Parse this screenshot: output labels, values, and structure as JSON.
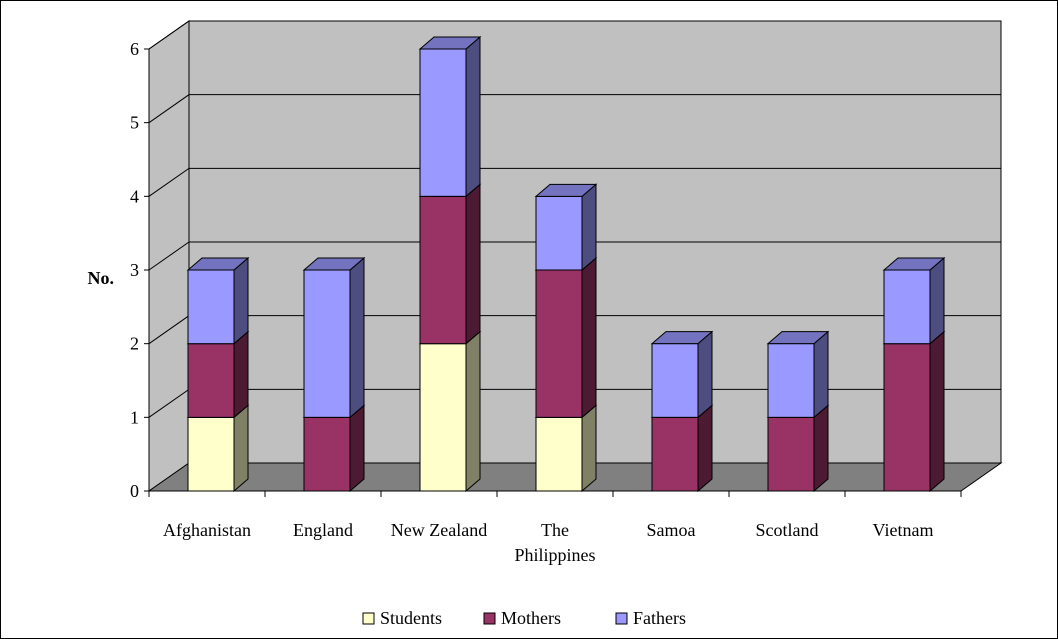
{
  "chart_data": {
    "type": "bar",
    "stacked": true,
    "three_d": true,
    "ylabel": "No.",
    "xlabel": "",
    "ylim": [
      0,
      6
    ],
    "yticks": [
      "0",
      "1",
      "2",
      "3",
      "4",
      "5",
      "6"
    ],
    "grid": true,
    "legend_position": "bottom",
    "categories": [
      [
        "Afghanistan"
      ],
      [
        "England"
      ],
      [
        "New Zealand"
      ],
      [
        "The",
        "Philippines"
      ],
      [
        "Samoa"
      ],
      [
        "Scotland"
      ],
      [
        "Vietnam"
      ]
    ],
    "series": [
      {
        "name": "Students",
        "color": "#ffffcc",
        "values": [
          1,
          0,
          2,
          1,
          0,
          0,
          0
        ]
      },
      {
        "name": "Mothers",
        "color": "#993366",
        "values": [
          1,
          1,
          2,
          2,
          1,
          1,
          2
        ]
      },
      {
        "name": "Fathers",
        "color": "#9999ff",
        "values": [
          1,
          2,
          2,
          1,
          1,
          1,
          1
        ]
      }
    ],
    "colors": {
      "wall": "#c0c0c0",
      "floor": "#808080"
    }
  }
}
